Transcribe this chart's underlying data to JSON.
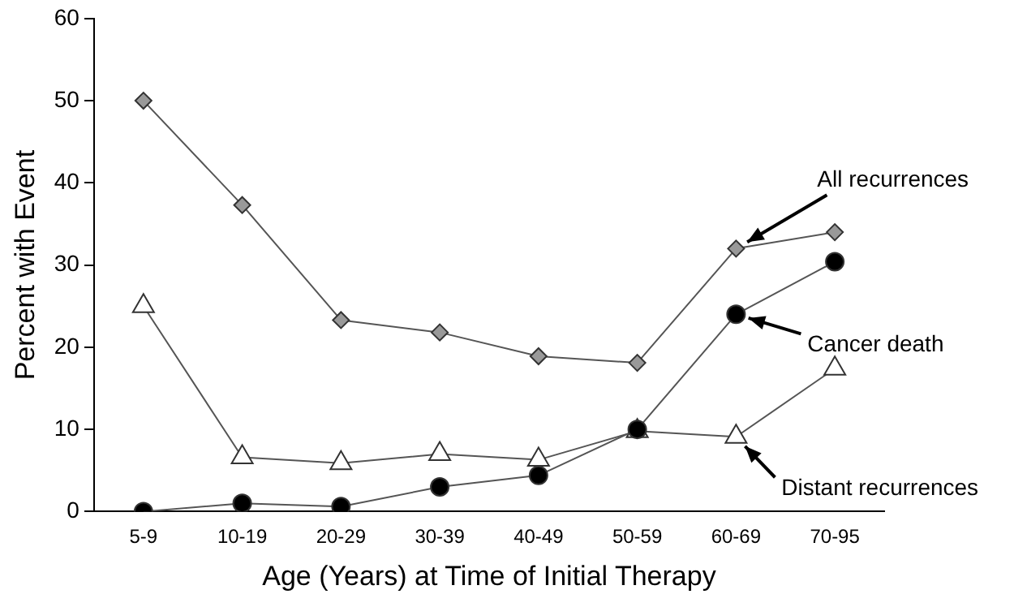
{
  "chart_data": {
    "type": "line",
    "xlabel": "Age (Years) at Time of Initial Therapy",
    "ylabel": "Percent with Event",
    "categories": [
      "5-9",
      "10-19",
      "20-29",
      "30-39",
      "40-49",
      "50-59",
      "60-69",
      "70-95"
    ],
    "series": [
      {
        "color": "#999999",
        "marker": "diamond",
        "values": [
          50,
          37.3,
          23.3,
          21.8,
          18.9,
          18.1,
          32,
          34
        ]
      },
      {
        "color": "#000000",
        "marker": "circle",
        "values": [
          0,
          1,
          0.6,
          3,
          4.4,
          10,
          24,
          30.4
        ]
      },
      {
        "color": "#ffffff",
        "marker": "triangle",
        "values": [
          25,
          6.6,
          5.9,
          7,
          6.3,
          9.8,
          9.1,
          17.4
        ]
      }
    ],
    "ylim": [
      0,
      60
    ],
    "yticks": [
      0,
      10,
      20,
      30,
      40,
      50,
      60
    ],
    "grid": false,
    "legend": false,
    "annotations": [
      {
        "text": "All recurrences",
        "x": "60-69",
        "y": 32
      },
      {
        "text": "Cancer death",
        "x": "60-69",
        "y": 24
      },
      {
        "text": "Distant recurrences",
        "x": "60-69",
        "y": 9.1
      }
    ]
  }
}
